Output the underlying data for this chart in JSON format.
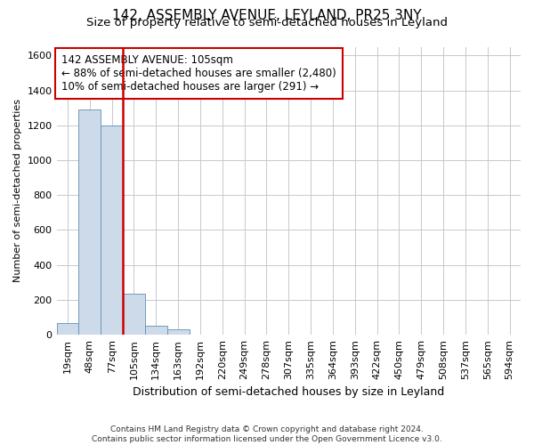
{
  "title_line1": "142, ASSEMBLY AVENUE, LEYLAND, PR25 3NY",
  "title_line2": "Size of property relative to semi-detached houses in Leyland",
  "xlabel": "Distribution of semi-detached houses by size in Leyland",
  "ylabel": "Number of semi-detached properties",
  "footnote": "Contains HM Land Registry data © Crown copyright and database right 2024.\nContains public sector information licensed under the Open Government Licence v3.0.",
  "annotation_line1": "142 ASSEMBLY AVENUE: 105sqm",
  "annotation_line2": "← 88% of semi-detached houses are smaller (2,480)",
  "annotation_line3": "10% of semi-detached houses are larger (291) →",
  "bar_labels": [
    "19sqm",
    "48sqm",
    "77sqm",
    "105sqm",
    "134sqm",
    "163sqm",
    "192sqm",
    "220sqm",
    "249sqm",
    "278sqm",
    "307sqm",
    "335sqm",
    "364sqm",
    "393sqm",
    "422sqm",
    "450sqm",
    "479sqm",
    "508sqm",
    "537sqm",
    "565sqm",
    "594sqm"
  ],
  "bar_values": [
    65,
    1290,
    1200,
    235,
    50,
    30,
    0,
    0,
    0,
    0,
    0,
    0,
    0,
    0,
    0,
    0,
    0,
    0,
    0,
    0,
    0
  ],
  "bar_color": "#ccdaea",
  "bar_edge_color": "#6090b0",
  "red_line_color": "#cc0000",
  "red_line_x": 2.5,
  "ylim": [
    0,
    1650
  ],
  "yticks": [
    0,
    200,
    400,
    600,
    800,
    1000,
    1200,
    1400,
    1600
  ],
  "grid_color": "#c8c8d0",
  "title1_fontsize": 11,
  "title2_fontsize": 9.5,
  "xlabel_fontsize": 9,
  "ylabel_fontsize": 8,
  "tick_fontsize": 8,
  "xtick_fontsize": 8,
  "footnote_fontsize": 6.5,
  "annotation_fontsize": 8.5,
  "bar_width": 1.0
}
